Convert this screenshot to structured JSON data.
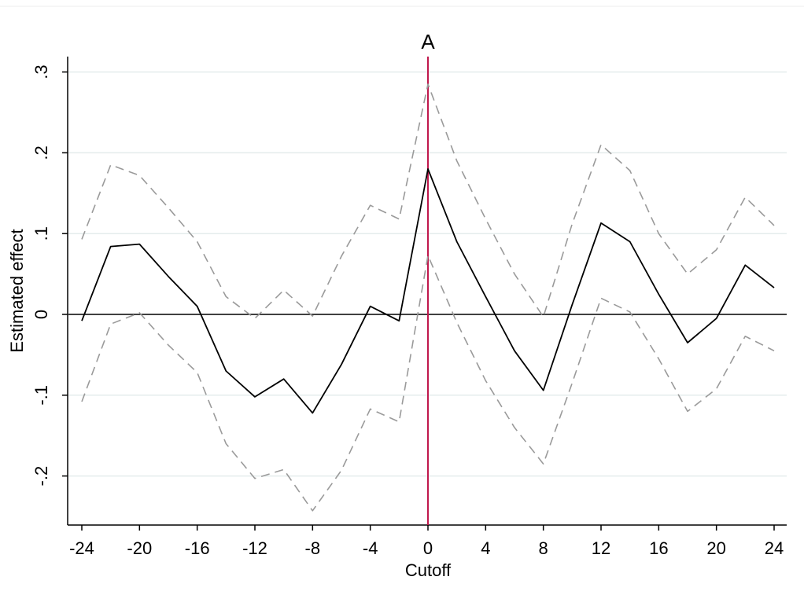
{
  "chart_data": {
    "type": "line",
    "title": "A",
    "xlabel": "Cutoff",
    "ylabel": "Estimated effect",
    "xlim": [
      -24,
      24
    ],
    "ylim": [
      -0.26,
      0.32
    ],
    "x_ticks": [
      -24,
      -20,
      -16,
      -12,
      -8,
      -4,
      0,
      4,
      8,
      12,
      16,
      20,
      24
    ],
    "x_tick_labels": [
      "-24",
      "-20",
      "-16",
      "-12",
      "-8",
      "-4",
      "0",
      "4",
      "8",
      "12",
      "16",
      "20",
      "24"
    ],
    "y_ticks": [
      -0.2,
      -0.1,
      0,
      0.1,
      0.2,
      0.3
    ],
    "y_tick_labels": [
      "-.2",
      "-.1",
      "0",
      ".1",
      ".2",
      ".3"
    ],
    "grid": true,
    "legend": "none",
    "x": [
      -24,
      -22,
      -20,
      -18,
      -16,
      -14,
      -12,
      -10,
      -8,
      -6,
      -4,
      -2,
      0,
      2,
      4,
      6,
      8,
      10,
      12,
      14,
      16,
      18,
      20,
      22,
      24
    ],
    "series": [
      {
        "role": "estimate",
        "style": "solid",
        "color": "#000000",
        "values": [
          -0.008,
          0.084,
          0.087,
          0.047,
          0.01,
          -0.07,
          -0.102,
          -0.08,
          -0.122,
          -0.062,
          0.01,
          -0.008,
          0.18,
          0.09,
          0.022,
          -0.045,
          -0.094,
          0.012,
          0.113,
          0.09,
          0.025,
          -0.035,
          -0.005,
          0.061,
          0.033
        ]
      },
      {
        "role": "upper-ci",
        "style": "dashed",
        "color": "#9a9a9a",
        "values": [
          0.093,
          0.185,
          0.172,
          0.132,
          0.09,
          0.022,
          -0.005,
          0.03,
          -0.002,
          0.072,
          0.135,
          0.118,
          0.285,
          0.19,
          0.118,
          0.05,
          -0.003,
          0.112,
          0.21,
          0.178,
          0.1,
          0.05,
          0.08,
          0.145,
          0.11
        ]
      },
      {
        "role": "lower-ci",
        "style": "dashed",
        "color": "#9a9a9a",
        "values": [
          -0.108,
          -0.012,
          0.002,
          -0.038,
          -0.072,
          -0.16,
          -0.203,
          -0.192,
          -0.243,
          -0.193,
          -0.117,
          -0.133,
          0.073,
          -0.01,
          -0.082,
          -0.14,
          -0.185,
          -0.085,
          0.02,
          0.003,
          -0.055,
          -0.12,
          -0.092,
          -0.027,
          -0.045
        ]
      }
    ],
    "reference_lines": [
      {
        "axis": "y",
        "value": 0,
        "color": "#000000"
      },
      {
        "axis": "x",
        "value": 0,
        "color": "#c0184c"
      }
    ]
  }
}
